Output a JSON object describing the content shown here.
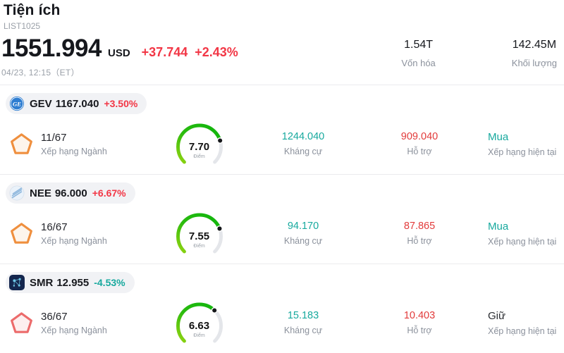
{
  "header": {
    "title": "Tiện ích",
    "subtitle": "LIST1025"
  },
  "quote": {
    "price": "1551.994",
    "currency": "USD",
    "change": "+37.744",
    "change_pct": "+2.43%",
    "timestamp": "04/23, 12:15（ET）",
    "stats": [
      {
        "value": "1.54T",
        "label": "Vốn hóa"
      },
      {
        "value": "142.45M",
        "label": "Khối lượng"
      }
    ]
  },
  "labels": {
    "rank": "Xếp hạng Ngành",
    "score": "Điểm",
    "resistance": "Kháng cự",
    "support": "Hỗ trợ",
    "rating": "Xếp hạng hiện tại"
  },
  "rows": [
    {
      "ticker": "GEV",
      "price": "1167.040",
      "change_pct": "+3.50%",
      "trend": "up",
      "rank": "11/67",
      "score": "7.70",
      "resistance": "1244.040",
      "support": "909.040",
      "rating": "Mua",
      "rating_type": "buy",
      "badge": "orange"
    },
    {
      "ticker": "NEE",
      "price": "96.000",
      "change_pct": "+6.67%",
      "trend": "up",
      "rank": "16/67",
      "score": "7.55",
      "resistance": "94.170",
      "support": "87.865",
      "rating": "Mua",
      "rating_type": "buy",
      "badge": "orange"
    },
    {
      "ticker": "SMR",
      "price": "12.955",
      "change_pct": "-4.53%",
      "trend": "down",
      "rank": "36/67",
      "score": "6.63",
      "resistance": "15.183",
      "support": "10.403",
      "rating": "Giữ",
      "rating_type": "hold",
      "badge": "red"
    }
  ],
  "colors": {
    "up": "#f23645",
    "down": "#17a99e",
    "gauge_green": "#1eb80e",
    "badge_orange": "#ef8f3e",
    "badge_red": "#ec6b6b"
  }
}
